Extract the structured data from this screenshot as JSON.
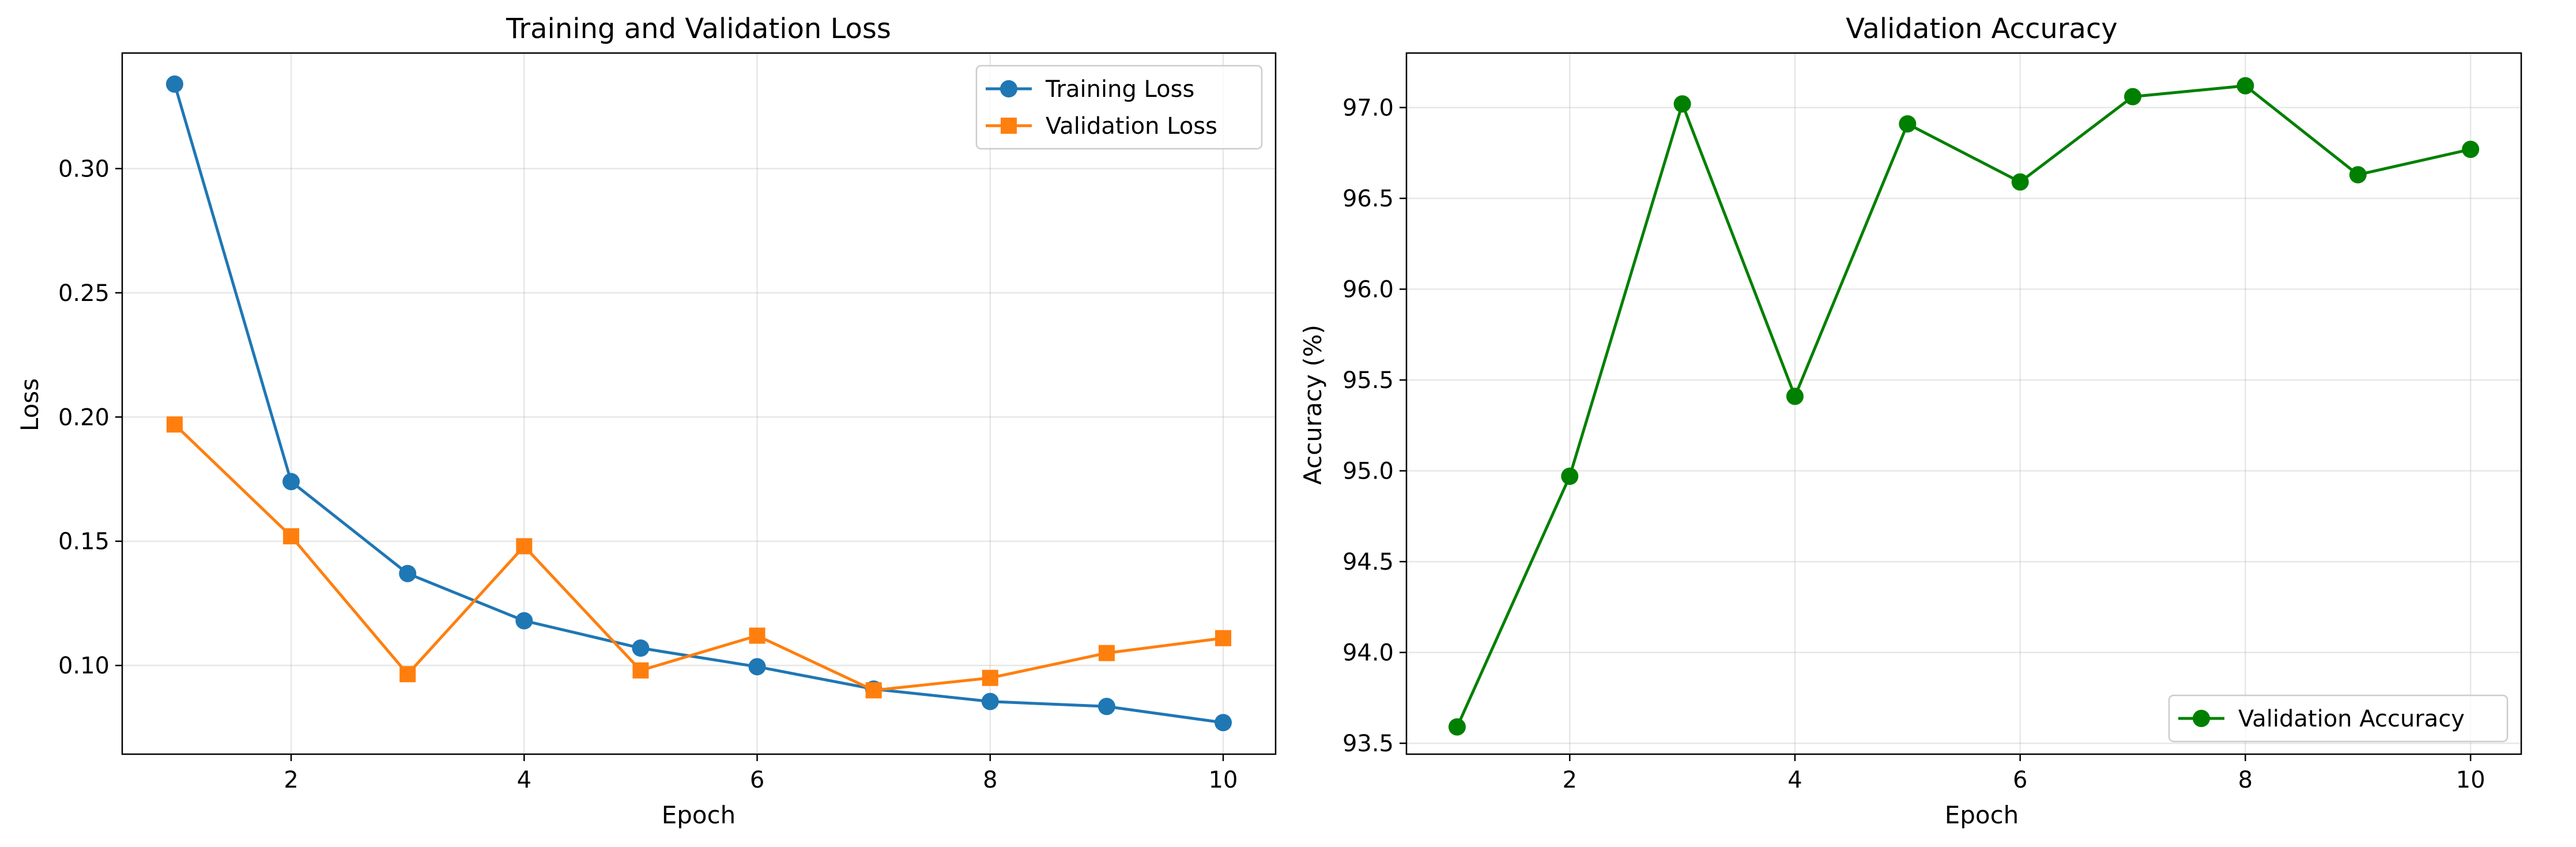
{
  "chart_data": [
    {
      "type": "line",
      "title": "Training and Validation Loss",
      "xlabel": "Epoch",
      "ylabel": "Loss",
      "x": [
        1,
        2,
        3,
        4,
        5,
        6,
        7,
        8,
        9,
        10
      ],
      "xlim": [
        0.55,
        10.45
      ],
      "ylim": [
        0.0643,
        0.3465
      ],
      "xticks": [
        2,
        4,
        6,
        8,
        10
      ],
      "yticks": [
        0.1,
        0.15,
        0.2,
        0.25,
        0.3
      ],
      "ytick_labels": [
        "0.10",
        "0.15",
        "0.20",
        "0.25",
        "0.30"
      ],
      "grid": true,
      "legend_position": "upper right",
      "series": [
        {
          "name": "Training Loss",
          "color": "#1f77b4",
          "marker": "circle",
          "values": [
            0.334,
            0.174,
            0.137,
            0.118,
            0.107,
            0.0995,
            0.0905,
            0.0855,
            0.0835,
            0.077
          ]
        },
        {
          "name": "Validation Loss",
          "color": "#ff7f0e",
          "marker": "square",
          "values": [
            0.197,
            0.152,
            0.0965,
            0.148,
            0.098,
            0.112,
            0.09,
            0.095,
            0.105,
            0.111
          ]
        }
      ]
    },
    {
      "type": "line",
      "title": "Validation Accuracy",
      "xlabel": "Epoch",
      "ylabel": "Accuracy (%)",
      "x": [
        1,
        2,
        3,
        4,
        5,
        6,
        7,
        8,
        9,
        10
      ],
      "xlim": [
        0.55,
        10.45
      ],
      "ylim": [
        93.44,
        97.3
      ],
      "xticks": [
        2,
        4,
        6,
        8,
        10
      ],
      "yticks": [
        93.5,
        94.0,
        94.5,
        95.0,
        95.5,
        96.0,
        96.5,
        97.0
      ],
      "ytick_labels": [
        "93.5",
        "94.0",
        "94.5",
        "95.0",
        "95.5",
        "96.0",
        "96.5",
        "97.0"
      ],
      "grid": true,
      "legend_position": "lower right",
      "series": [
        {
          "name": "Validation Accuracy",
          "color": "#008000",
          "marker": "circle",
          "values": [
            93.59,
            94.97,
            97.02,
            95.41,
            96.91,
            96.59,
            97.06,
            97.12,
            96.63,
            96.77
          ]
        }
      ]
    }
  ]
}
